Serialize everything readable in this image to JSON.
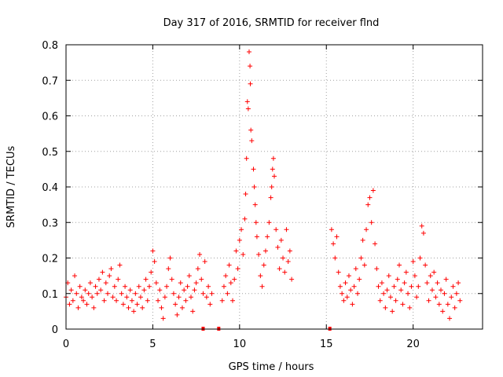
{
  "chart_data": {
    "type": "scatter",
    "title": "Day 317 of 2016, SRMTID for receiver flnd",
    "xlabel": "GPS time / hours",
    "ylabel": "SRMTID / TECUs",
    "xlim": [
      0,
      24
    ],
    "ylim": [
      0,
      0.8
    ],
    "x_ticks": [
      0,
      5,
      10,
      15,
      20
    ],
    "x_tick_labels": [
      "0",
      "5",
      "10",
      "15",
      "20"
    ],
    "y_ticks": [
      0,
      0.1,
      0.2,
      0.3,
      0.4,
      0.5,
      0.6,
      0.7,
      0.8
    ],
    "y_tick_labels": [
      "0",
      "0.1",
      "0.2",
      "0.3",
      "0.4",
      "0.5",
      "0.6",
      "0.7",
      "0.8"
    ],
    "grid": true,
    "marker": "+",
    "color": "#ff0000",
    "series": [
      {
        "name": "SRMTID",
        "points": [
          [
            0.0,
            0.09
          ],
          [
            0.1,
            0.13
          ],
          [
            0.2,
            0.07
          ],
          [
            0.3,
            0.11
          ],
          [
            0.4,
            0.08
          ],
          [
            0.5,
            0.15
          ],
          [
            0.6,
            0.1
          ],
          [
            0.7,
            0.06
          ],
          [
            0.8,
            0.12
          ],
          [
            0.9,
            0.09
          ],
          [
            1.0,
            0.08
          ],
          [
            1.1,
            0.11
          ],
          [
            1.2,
            0.07
          ],
          [
            1.3,
            0.1
          ],
          [
            1.4,
            0.13
          ],
          [
            1.5,
            0.09
          ],
          [
            1.6,
            0.06
          ],
          [
            1.7,
            0.12
          ],
          [
            1.8,
            0.1
          ],
          [
            1.9,
            0.14
          ],
          [
            2.0,
            0.11
          ],
          [
            2.1,
            0.16
          ],
          [
            2.2,
            0.08
          ],
          [
            2.3,
            0.13
          ],
          [
            2.4,
            0.1
          ],
          [
            2.5,
            0.15
          ],
          [
            2.6,
            0.17
          ],
          [
            2.7,
            0.09
          ],
          [
            2.8,
            0.12
          ],
          [
            2.9,
            0.08
          ],
          [
            3.0,
            0.14
          ],
          [
            3.1,
            0.18
          ],
          [
            3.2,
            0.1
          ],
          [
            3.3,
            0.07
          ],
          [
            3.4,
            0.12
          ],
          [
            3.5,
            0.09
          ],
          [
            3.6,
            0.06
          ],
          [
            3.7,
            0.11
          ],
          [
            3.8,
            0.08
          ],
          [
            3.9,
            0.05
          ],
          [
            4.0,
            0.1
          ],
          [
            4.1,
            0.07
          ],
          [
            4.2,
            0.12
          ],
          [
            4.3,
            0.09
          ],
          [
            4.4,
            0.06
          ],
          [
            4.5,
            0.11
          ],
          [
            4.6,
            0.14
          ],
          [
            4.7,
            0.08
          ],
          [
            4.8,
            0.12
          ],
          [
            4.9,
            0.16
          ],
          [
            5.0,
            0.22
          ],
          [
            5.1,
            0.19
          ],
          [
            5.2,
            0.13
          ],
          [
            5.3,
            0.08
          ],
          [
            5.4,
            0.11
          ],
          [
            5.5,
            0.06
          ],
          [
            5.6,
            0.03
          ],
          [
            5.7,
            0.09
          ],
          [
            5.8,
            0.12
          ],
          [
            5.9,
            0.17
          ],
          [
            6.0,
            0.2
          ],
          [
            6.1,
            0.14
          ],
          [
            6.2,
            0.1
          ],
          [
            6.3,
            0.07
          ],
          [
            6.4,
            0.04
          ],
          [
            6.5,
            0.09
          ],
          [
            6.6,
            0.13
          ],
          [
            6.7,
            0.06
          ],
          [
            6.8,
            0.11
          ],
          [
            6.9,
            0.08
          ],
          [
            7.0,
            0.12
          ],
          [
            7.1,
            0.15
          ],
          [
            7.2,
            0.09
          ],
          [
            7.3,
            0.05
          ],
          [
            7.4,
            0.11
          ],
          [
            7.5,
            0.13
          ],
          [
            7.6,
            0.17
          ],
          [
            7.7,
            0.21
          ],
          [
            7.8,
            0.14
          ],
          [
            7.9,
            0.1
          ],
          [
            8.0,
            0.19
          ],
          [
            8.1,
            0.09
          ],
          [
            8.2,
            0.12
          ],
          [
            8.3,
            0.07
          ],
          [
            8.4,
            0.1
          ],
          [
            9.0,
            0.08
          ],
          [
            9.1,
            0.12
          ],
          [
            9.2,
            0.15
          ],
          [
            9.3,
            0.1
          ],
          [
            9.4,
            0.18
          ],
          [
            9.5,
            0.13
          ],
          [
            9.6,
            0.08
          ],
          [
            9.7,
            0.14
          ],
          [
            9.8,
            0.22
          ],
          [
            9.9,
            0.17
          ],
          [
            10.0,
            0.25
          ],
          [
            10.1,
            0.28
          ],
          [
            10.2,
            0.21
          ],
          [
            10.3,
            0.31
          ],
          [
            10.35,
            0.38
          ],
          [
            10.4,
            0.48
          ],
          [
            10.45,
            0.64
          ],
          [
            10.5,
            0.62
          ],
          [
            10.55,
            0.78
          ],
          [
            10.6,
            0.74
          ],
          [
            10.62,
            0.69
          ],
          [
            10.65,
            0.56
          ],
          [
            10.7,
            0.53
          ],
          [
            10.8,
            0.45
          ],
          [
            10.85,
            0.4
          ],
          [
            10.9,
            0.35
          ],
          [
            10.95,
            0.3
          ],
          [
            11.0,
            0.26
          ],
          [
            11.1,
            0.21
          ],
          [
            11.2,
            0.15
          ],
          [
            11.3,
            0.12
          ],
          [
            11.4,
            0.18
          ],
          [
            11.5,
            0.22
          ],
          [
            11.6,
            0.26
          ],
          [
            11.7,
            0.3
          ],
          [
            11.8,
            0.37
          ],
          [
            11.85,
            0.4
          ],
          [
            11.9,
            0.45
          ],
          [
            11.95,
            0.48
          ],
          [
            12.0,
            0.43
          ],
          [
            12.1,
            0.28
          ],
          [
            12.2,
            0.23
          ],
          [
            12.3,
            0.17
          ],
          [
            12.4,
            0.25
          ],
          [
            12.5,
            0.2
          ],
          [
            12.6,
            0.16
          ],
          [
            12.7,
            0.28
          ],
          [
            12.8,
            0.19
          ],
          [
            12.9,
            0.22
          ],
          [
            13.0,
            0.14
          ],
          [
            15.3,
            0.28
          ],
          [
            15.4,
            0.24
          ],
          [
            15.5,
            0.2
          ],
          [
            15.6,
            0.26
          ],
          [
            15.7,
            0.16
          ],
          [
            15.8,
            0.12
          ],
          [
            15.9,
            0.1
          ],
          [
            16.0,
            0.08
          ],
          [
            16.1,
            0.13
          ],
          [
            16.2,
            0.09
          ],
          [
            16.3,
            0.15
          ],
          [
            16.4,
            0.11
          ],
          [
            16.5,
            0.07
          ],
          [
            16.6,
            0.12
          ],
          [
            16.7,
            0.17
          ],
          [
            16.8,
            0.1
          ],
          [
            16.9,
            0.14
          ],
          [
            17.0,
            0.2
          ],
          [
            17.1,
            0.25
          ],
          [
            17.2,
            0.18
          ],
          [
            17.3,
            0.28
          ],
          [
            17.4,
            0.35
          ],
          [
            17.5,
            0.37
          ],
          [
            17.6,
            0.3
          ],
          [
            17.7,
            0.39
          ],
          [
            17.8,
            0.24
          ],
          [
            17.9,
            0.17
          ],
          [
            18.0,
            0.12
          ],
          [
            18.1,
            0.08
          ],
          [
            18.2,
            0.13
          ],
          [
            18.3,
            0.1
          ],
          [
            18.4,
            0.06
          ],
          [
            18.5,
            0.11
          ],
          [
            18.6,
            0.15
          ],
          [
            18.7,
            0.09
          ],
          [
            18.8,
            0.05
          ],
          [
            18.9,
            0.12
          ],
          [
            19.0,
            0.08
          ],
          [
            19.1,
            0.14
          ],
          [
            19.2,
            0.18
          ],
          [
            19.3,
            0.11
          ],
          [
            19.4,
            0.07
          ],
          [
            19.5,
            0.13
          ],
          [
            19.6,
            0.16
          ],
          [
            19.7,
            0.1
          ],
          [
            19.8,
            0.06
          ],
          [
            19.9,
            0.12
          ],
          [
            20.0,
            0.19
          ],
          [
            20.1,
            0.15
          ],
          [
            20.2,
            0.09
          ],
          [
            20.3,
            0.12
          ],
          [
            20.4,
            0.2
          ],
          [
            20.5,
            0.29
          ],
          [
            20.6,
            0.27
          ],
          [
            20.7,
            0.18
          ],
          [
            20.8,
            0.13
          ],
          [
            20.9,
            0.08
          ],
          [
            21.0,
            0.15
          ],
          [
            21.1,
            0.11
          ],
          [
            21.2,
            0.16
          ],
          [
            21.3,
            0.09
          ],
          [
            21.4,
            0.13
          ],
          [
            21.5,
            0.07
          ],
          [
            21.6,
            0.11
          ],
          [
            21.7,
            0.05
          ],
          [
            21.8,
            0.1
          ],
          [
            21.9,
            0.14
          ],
          [
            22.0,
            0.07
          ],
          [
            22.1,
            0.03
          ],
          [
            22.2,
            0.09
          ],
          [
            22.3,
            0.12
          ],
          [
            22.4,
            0.06
          ],
          [
            22.5,
            0.1
          ],
          [
            22.6,
            0.13
          ],
          [
            22.7,
            0.08
          ]
        ]
      }
    ],
    "zero_markers_x": [
      7.9,
      8.8,
      15.2
    ]
  }
}
